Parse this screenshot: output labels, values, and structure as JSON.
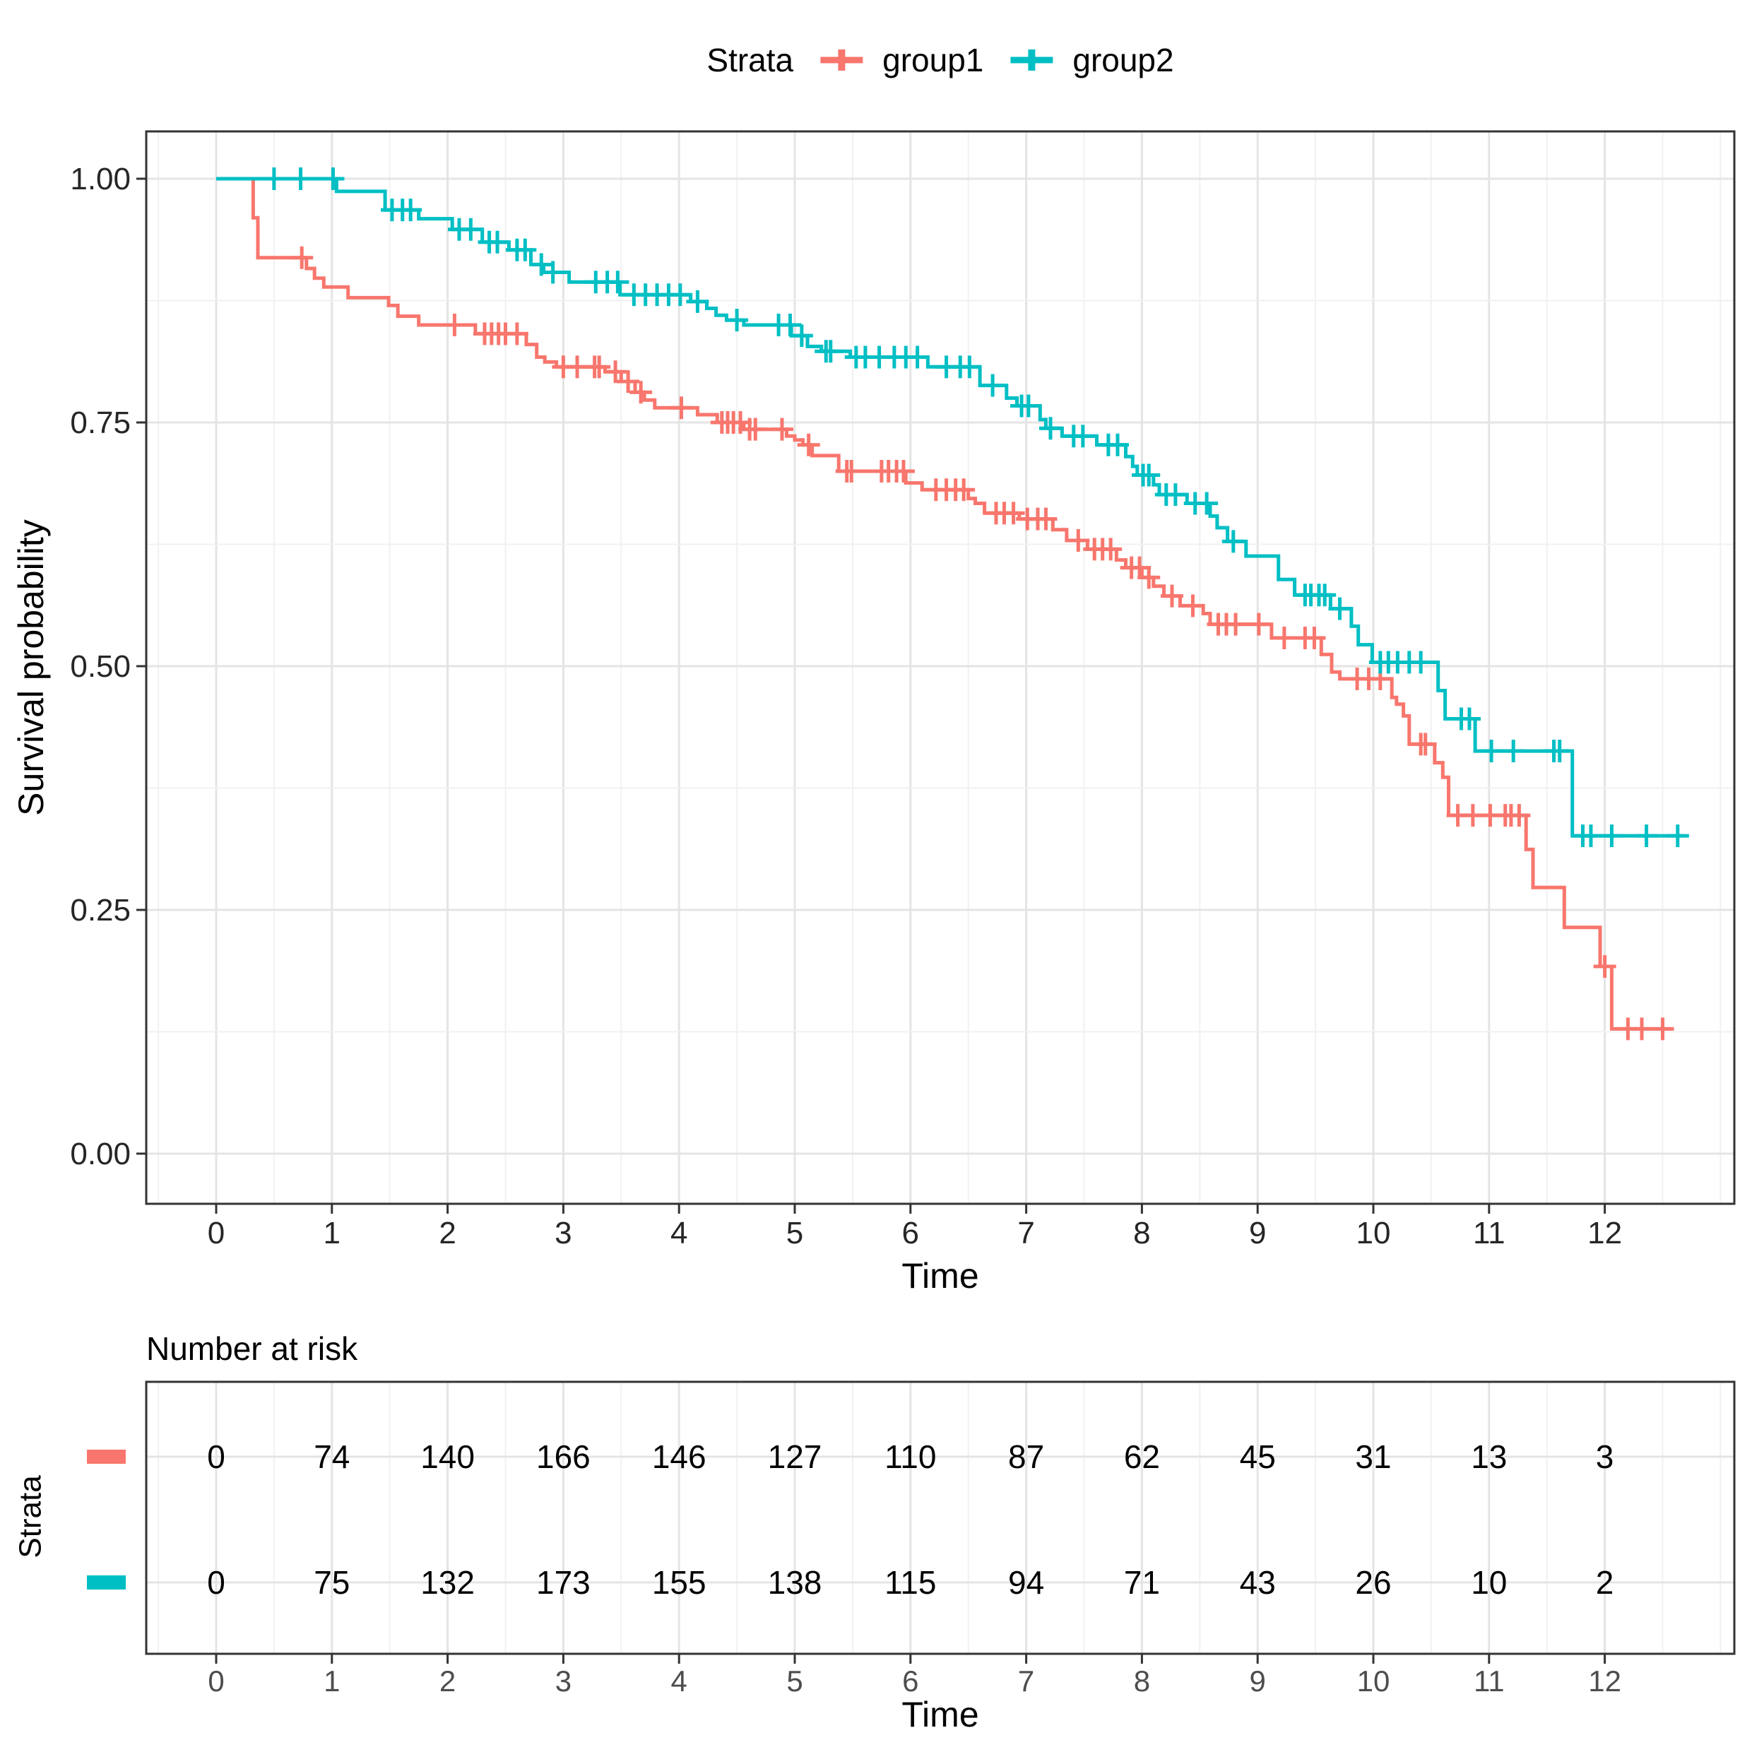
{
  "chart_data": {
    "type": "line",
    "subtype": "kaplan-meier-step",
    "title": "",
    "legend_title": "Strata",
    "legend_position": "top",
    "xlabel": "Time",
    "ylabel": "Survival probability",
    "grid": true,
    "xlim": [
      -0.62,
      13.12
    ],
    "ylim": [
      -0.05,
      1.05
    ],
    "x_ticks": [
      "0",
      "1",
      "2",
      "3",
      "4",
      "5",
      "6",
      "7",
      "8",
      "9",
      "10",
      "11",
      "12"
    ],
    "x_tick_values": [
      0,
      1,
      2,
      3,
      4,
      5,
      6,
      7,
      8,
      9,
      10,
      11,
      12
    ],
    "y_ticks": [
      {
        "value": 0.0,
        "label": "0.00"
      },
      {
        "value": 0.25,
        "label": "0.25"
      },
      {
        "value": 0.5,
        "label": "0.50"
      },
      {
        "value": 0.75,
        "label": "0.75"
      },
      {
        "value": 1.0,
        "label": "1.00"
      }
    ],
    "series": [
      {
        "name": "group1",
        "color": "#F8766D",
        "end_time": 12.58,
        "steps": [
          [
            0,
            1.0
          ],
          [
            0.32,
            0.96
          ],
          [
            0.36,
            0.919
          ],
          [
            0.78,
            0.908
          ],
          [
            0.85,
            0.898
          ],
          [
            0.93,
            0.889
          ],
          [
            1.14,
            0.878
          ],
          [
            1.49,
            0.87
          ],
          [
            1.57,
            0.859
          ],
          [
            1.75,
            0.85
          ],
          [
            2.24,
            0.841
          ],
          [
            2.68,
            0.83
          ],
          [
            2.77,
            0.817
          ],
          [
            2.84,
            0.812
          ],
          [
            2.94,
            0.807
          ],
          [
            3.36,
            0.802
          ],
          [
            3.5,
            0.792
          ],
          [
            3.62,
            0.781
          ],
          [
            3.7,
            0.773
          ],
          [
            3.79,
            0.765
          ],
          [
            4.16,
            0.758
          ],
          [
            4.33,
            0.75
          ],
          [
            4.56,
            0.743
          ],
          [
            4.93,
            0.736
          ],
          [
            5.0,
            0.732
          ],
          [
            5.07,
            0.727
          ],
          [
            5.15,
            0.716
          ],
          [
            5.38,
            0.7
          ],
          [
            5.96,
            0.688
          ],
          [
            6.1,
            0.681
          ],
          [
            6.5,
            0.672
          ],
          [
            6.56,
            0.667
          ],
          [
            6.64,
            0.657
          ],
          [
            6.94,
            0.651
          ],
          [
            7.23,
            0.64
          ],
          [
            7.35,
            0.629
          ],
          [
            7.53,
            0.62
          ],
          [
            7.78,
            0.609
          ],
          [
            7.86,
            0.601
          ],
          [
            8.0,
            0.591
          ],
          [
            8.1,
            0.582
          ],
          [
            8.19,
            0.572
          ],
          [
            8.33,
            0.562
          ],
          [
            8.53,
            0.554
          ],
          [
            8.59,
            0.543
          ],
          [
            9.12,
            0.529
          ],
          [
            9.55,
            0.512
          ],
          [
            9.64,
            0.494
          ],
          [
            9.71,
            0.487
          ],
          [
            10.16,
            0.468
          ],
          [
            10.2,
            0.461
          ],
          [
            10.26,
            0.449
          ],
          [
            10.31,
            0.42
          ],
          [
            10.53,
            0.401
          ],
          [
            10.6,
            0.386
          ],
          [
            10.65,
            0.347
          ],
          [
            11.32,
            0.312
          ],
          [
            11.38,
            0.273
          ],
          [
            11.65,
            0.232
          ],
          [
            11.96,
            0.192
          ],
          [
            12.06,
            0.128
          ]
        ],
        "censor_times": [
          0.74,
          2.06,
          2.32,
          2.38,
          2.44,
          2.5,
          2.6,
          3.0,
          3.12,
          3.27,
          3.31,
          3.45,
          3.56,
          3.67,
          4.02,
          4.37,
          4.42,
          4.47,
          4.53,
          4.61,
          4.66,
          4.89,
          5.12,
          5.45,
          5.49,
          5.75,
          5.81,
          5.88,
          5.94,
          6.22,
          6.31,
          6.39,
          6.46,
          6.74,
          6.81,
          6.89,
          7.01,
          7.1,
          7.17,
          7.45,
          7.59,
          7.66,
          7.73,
          7.91,
          7.98,
          8.06,
          8.26,
          8.44,
          8.66,
          8.73,
          8.81,
          9.01,
          9.23,
          9.41,
          9.49,
          9.86,
          9.96,
          10.06,
          10.41,
          10.45,
          10.73,
          10.86,
          11.01,
          11.14,
          11.19,
          11.26,
          12.0,
          12.2,
          12.32,
          12.5
        ]
      },
      {
        "name": "group2",
        "color": "#00BFC4",
        "end_time": 12.68,
        "steps": [
          [
            0,
            1.0
          ],
          [
            1.04,
            0.987
          ],
          [
            1.46,
            0.968
          ],
          [
            1.75,
            0.959
          ],
          [
            2.04,
            0.948
          ],
          [
            2.3,
            0.935
          ],
          [
            2.53,
            0.927
          ],
          [
            2.72,
            0.912
          ],
          [
            2.83,
            0.904
          ],
          [
            3.05,
            0.894
          ],
          [
            3.49,
            0.881
          ],
          [
            4.1,
            0.874
          ],
          [
            4.24,
            0.867
          ],
          [
            4.32,
            0.86
          ],
          [
            4.41,
            0.855
          ],
          [
            4.56,
            0.85
          ],
          [
            4.97,
            0.839
          ],
          [
            5.11,
            0.828
          ],
          [
            5.23,
            0.823
          ],
          [
            5.48,
            0.817
          ],
          [
            6.15,
            0.807
          ],
          [
            6.6,
            0.788
          ],
          [
            6.83,
            0.775
          ],
          [
            6.92,
            0.767
          ],
          [
            7.12,
            0.753
          ],
          [
            7.17,
            0.744
          ],
          [
            7.31,
            0.736
          ],
          [
            7.61,
            0.727
          ],
          [
            7.86,
            0.715
          ],
          [
            7.92,
            0.705
          ],
          [
            7.96,
            0.696
          ],
          [
            8.1,
            0.686
          ],
          [
            8.15,
            0.676
          ],
          [
            8.39,
            0.667
          ],
          [
            8.59,
            0.654
          ],
          [
            8.65,
            0.642
          ],
          [
            8.74,
            0.628
          ],
          [
            8.9,
            0.613
          ],
          [
            9.18,
            0.589
          ],
          [
            9.32,
            0.573
          ],
          [
            9.63,
            0.559
          ],
          [
            9.81,
            0.541
          ],
          [
            9.87,
            0.522
          ],
          [
            9.99,
            0.504
          ],
          [
            10.56,
            0.475
          ],
          [
            10.62,
            0.446
          ],
          [
            10.88,
            0.413
          ],
          [
            11.72,
            0.326
          ]
        ],
        "censor_times": [
          0.5,
          0.73,
          1.01,
          1.52,
          1.61,
          1.68,
          2.1,
          2.2,
          2.36,
          2.43,
          2.6,
          2.67,
          2.81,
          2.91,
          3.28,
          3.38,
          3.47,
          3.61,
          3.71,
          3.81,
          3.91,
          4.01,
          4.16,
          4.5,
          4.86,
          4.96,
          5.06,
          5.27,
          5.31,
          5.53,
          5.61,
          5.73,
          5.86,
          5.96,
          6.06,
          6.31,
          6.43,
          6.51,
          6.71,
          6.96,
          7.02,
          7.21,
          7.41,
          7.49,
          7.71,
          7.79,
          8.01,
          8.06,
          8.21,
          8.29,
          8.46,
          8.56,
          8.79,
          9.41,
          9.46,
          9.53,
          9.58,
          9.71,
          10.06,
          10.13,
          10.21,
          10.31,
          10.41,
          10.76,
          10.83,
          11.02,
          11.21,
          11.56,
          11.61,
          11.81,
          11.88,
          12.06,
          12.36,
          12.63
        ]
      }
    ]
  },
  "risk_table": {
    "title": "Number at risk",
    "ylabel": "Strata",
    "xlabel": "Time",
    "time_labels": [
      "0",
      "1",
      "2",
      "3",
      "4",
      "5",
      "6",
      "7",
      "8",
      "9",
      "10",
      "11",
      "12"
    ],
    "time_values": [
      0,
      1,
      2,
      3,
      4,
      5,
      6,
      7,
      8,
      9,
      10,
      11,
      12
    ],
    "rows": [
      {
        "name": "group1",
        "color": "#F8766D",
        "values": [
          "0",
          "74",
          "140",
          "166",
          "146",
          "127",
          "110",
          "87",
          "62",
          "45",
          "31",
          "13",
          "3"
        ]
      },
      {
        "name": "group2",
        "color": "#00BFC4",
        "values": [
          "0",
          "75",
          "132",
          "173",
          "155",
          "138",
          "115",
          "94",
          "71",
          "43",
          "26",
          "10",
          "2"
        ]
      }
    ]
  },
  "colors": {
    "group1": "#F8766D",
    "group2": "#00BFC4",
    "panel_border": "#333333",
    "grid_major": "#E4E4E4",
    "grid_minor": "#F1F1F1",
    "tick_text": "#262626",
    "risk_axis_text": "#4D4D4D"
  }
}
